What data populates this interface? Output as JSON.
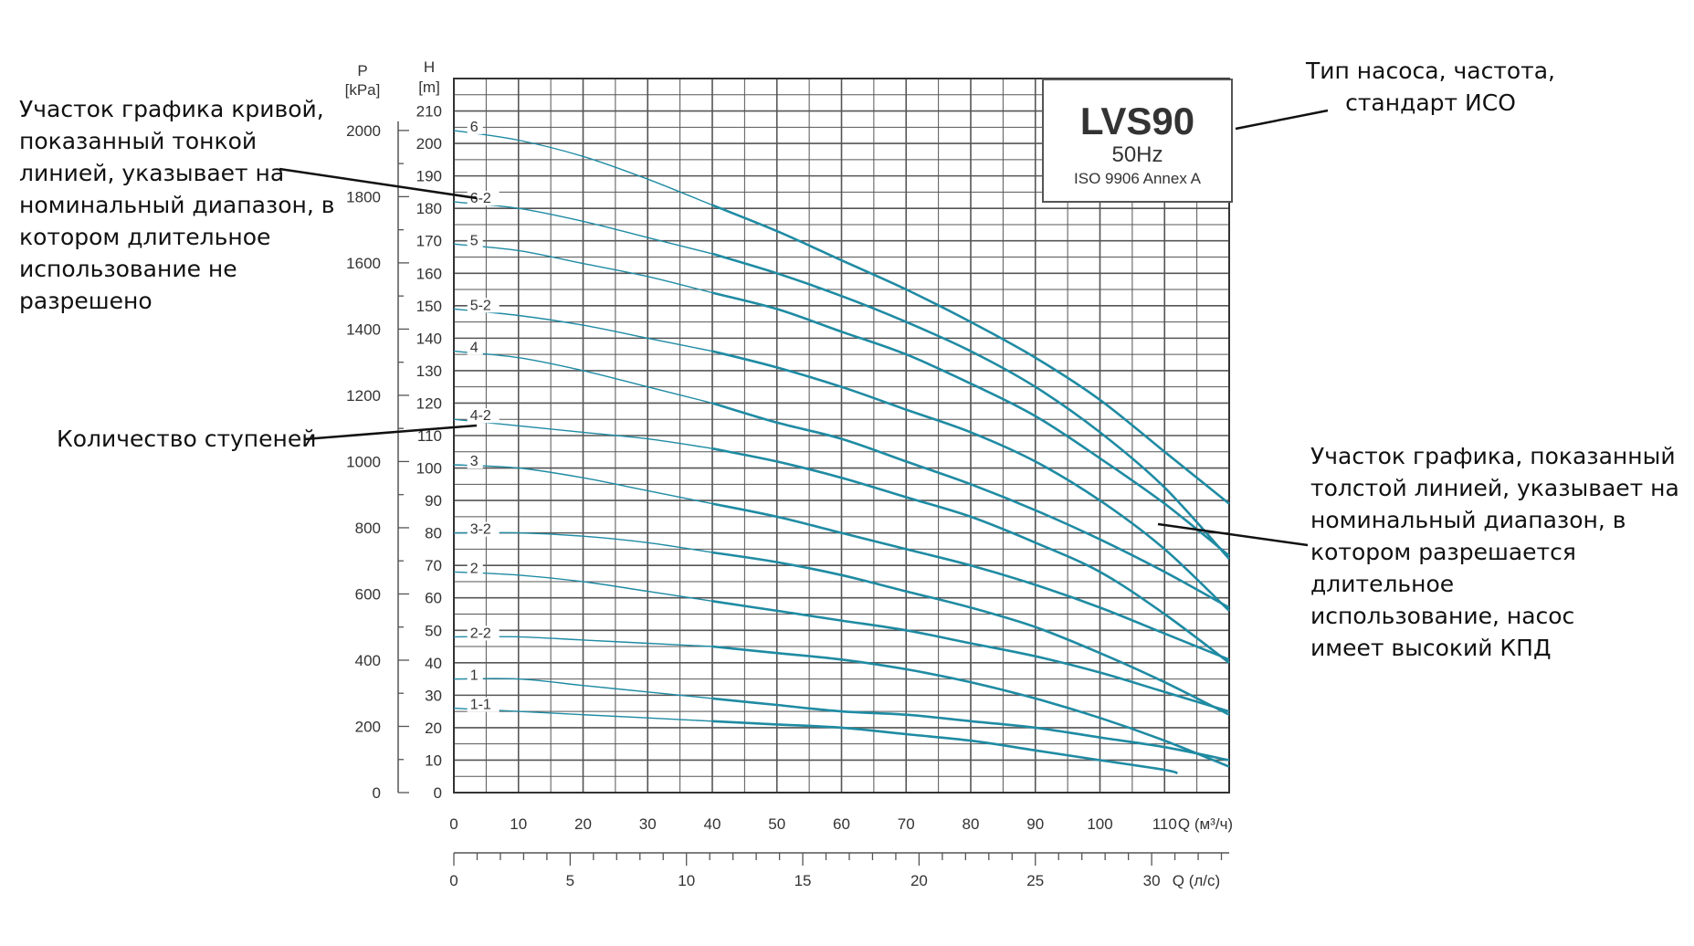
{
  "chart_data": {
    "type": "line",
    "x_axis_primary": {
      "ticks": [
        "0",
        "10",
        "20",
        "30",
        "40",
        "50",
        "60",
        "70",
        "80",
        "90",
        "100",
        "110"
      ],
      "label": "Q (м³/ч)",
      "range": [
        0,
        120
      ]
    },
    "x_axis_secondary": {
      "ticks": [
        "0",
        "5",
        "10",
        "15",
        "20",
        "25",
        "30"
      ],
      "label": "Q (л/с)"
    },
    "y_axis_head": {
      "unit_top": "H",
      "unit_bottom": "[m]",
      "ticks": [
        "0",
        "10",
        "20",
        "30",
        "40",
        "50",
        "60",
        "70",
        "80",
        "90",
        "100",
        "110",
        "120",
        "130",
        "140",
        "150",
        "160",
        "170",
        "180",
        "190",
        "200",
        "210"
      ],
      "range": [
        0,
        220
      ]
    },
    "y_axis_pressure": {
      "unit_top": "P",
      "unit_bottom": "[kPa]",
      "ticks": [
        "0",
        "200",
        "400",
        "600",
        "800",
        "1000",
        "1200",
        "1400",
        "1600",
        "1800",
        "2000"
      ]
    },
    "series": [
      {
        "name": "6",
        "x": [
          0,
          10,
          20,
          30,
          40,
          50,
          60,
          70,
          80,
          90,
          100,
          110,
          120
        ],
        "y": [
          204,
          201,
          196,
          189,
          181,
          173,
          164,
          155,
          145,
          134,
          121,
          105,
          89
        ]
      },
      {
        "name": "6-2",
        "x": [
          0,
          10,
          20,
          30,
          40,
          50,
          60,
          70,
          80,
          90,
          100,
          110,
          120
        ],
        "y": [
          182,
          180,
          176,
          171,
          166,
          160,
          153,
          145,
          136,
          125,
          111,
          94,
          72
        ]
      },
      {
        "name": "5",
        "x": [
          0,
          10,
          20,
          30,
          40,
          50,
          60,
          70,
          80,
          90,
          100,
          110,
          120
        ],
        "y": [
          169,
          167,
          163,
          159,
          154,
          149,
          142,
          135,
          126,
          116,
          103,
          89,
          73
        ]
      },
      {
        "name": "5-2",
        "x": [
          0,
          10,
          20,
          30,
          40,
          50,
          60,
          70,
          80,
          90,
          100,
          110,
          120
        ],
        "y": [
          149,
          147,
          144,
          140,
          136,
          131,
          125,
          118,
          111,
          102,
          90,
          75,
          56
        ]
      },
      {
        "name": "4",
        "x": [
          0,
          10,
          20,
          30,
          40,
          50,
          60,
          70,
          80,
          90,
          100,
          110,
          120
        ],
        "y": [
          136,
          134,
          130,
          125,
          120,
          114,
          109,
          102,
          95,
          87,
          78,
          68,
          57
        ]
      },
      {
        "name": "4-2",
        "x": [
          0,
          10,
          20,
          30,
          40,
          50,
          60,
          70,
          80,
          90,
          100,
          110,
          120
        ],
        "y": [
          115,
          113,
          111,
          109,
          106,
          102,
          97,
          91,
          85,
          77,
          68,
          55,
          40
        ]
      },
      {
        "name": "3",
        "x": [
          0,
          10,
          20,
          30,
          40,
          50,
          60,
          70,
          80,
          90,
          100,
          110,
          120
        ],
        "y": [
          101,
          100,
          97,
          93,
          89,
          85,
          80,
          75,
          70,
          64,
          57,
          49,
          41
        ]
      },
      {
        "name": "3-2",
        "x": [
          0,
          10,
          20,
          30,
          40,
          50,
          60,
          70,
          80,
          90,
          100,
          110,
          120
        ],
        "y": [
          80,
          80,
          79,
          77,
          74,
          71,
          67,
          62,
          57,
          51,
          43,
          34,
          24
        ]
      },
      {
        "name": "2",
        "x": [
          0,
          10,
          20,
          30,
          40,
          50,
          60,
          70,
          80,
          90,
          100,
          110,
          120
        ],
        "y": [
          68,
          67,
          65,
          62,
          59,
          56,
          53,
          50,
          46,
          42,
          37,
          31,
          25
        ]
      },
      {
        "name": "2-2",
        "x": [
          0,
          10,
          20,
          30,
          40,
          50,
          60,
          70,
          80,
          90,
          100,
          110,
          120
        ],
        "y": [
          48,
          48,
          47,
          46,
          45,
          43,
          41,
          38,
          34,
          29,
          23,
          16,
          8
        ]
      },
      {
        "name": "1",
        "x": [
          0,
          10,
          20,
          30,
          40,
          50,
          60,
          70,
          80,
          90,
          100,
          110,
          120
        ],
        "y": [
          35,
          35,
          33,
          31,
          29,
          27,
          25,
          24,
          22,
          20,
          17,
          14,
          10
        ]
      },
      {
        "name": "1-1",
        "x": [
          0,
          10,
          20,
          30,
          40,
          50,
          60,
          70,
          80,
          90,
          100,
          110,
          112
        ],
        "y": [
          26,
          25,
          24,
          23,
          22,
          21,
          20,
          18,
          16,
          13,
          10,
          7,
          6
        ]
      }
    ]
  },
  "legend_box": {
    "model": "LVS90",
    "frequency": "50Hz",
    "standard": "ISO 9906 Annex A"
  },
  "annotations": {
    "thin_line": "Участок графика кривой,\nпоказанный тонкой\nлинией, указывает на\nноминальный диапазон, в\nкотором длительное\nиспользование не\nразрешено",
    "stages": "Количество ступеней",
    "pump_type": "Тип насоса, частота,\nстандарт ИСО",
    "thick_line": "Участок графика, показанный\nтолстой линией, указывает на\nноминальный диапазон, в\nкотором разрешается длительное\nиспользование, насос\nимеет высокий КПД"
  },
  "colors": {
    "curve": "#1f8ba3",
    "grid": "#555555",
    "text": "#333333"
  }
}
